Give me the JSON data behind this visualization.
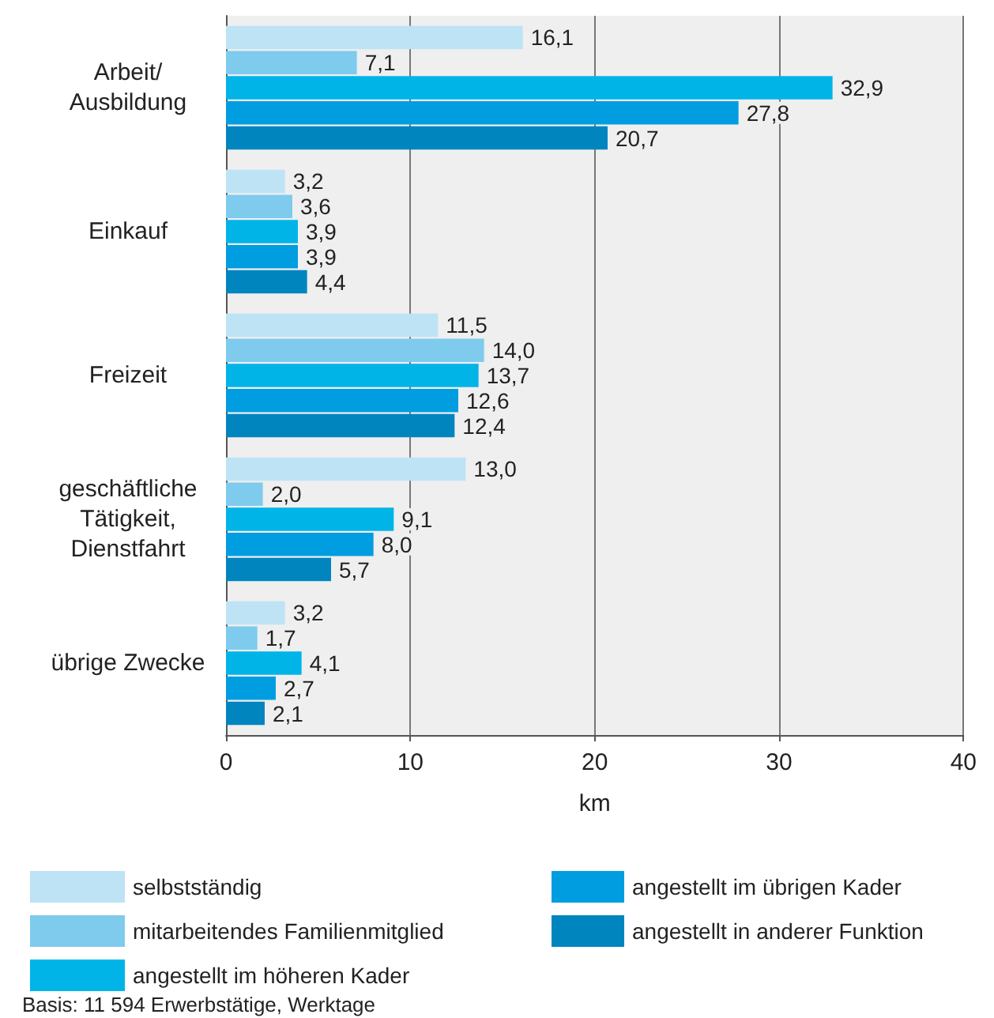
{
  "chart_data": {
    "type": "bar",
    "orientation": "horizontal",
    "xlabel": "km",
    "categories": [
      "Arbeit/\nAusbildung",
      "Einkauf",
      "Freizeit",
      "geschäftliche\nTätigkeit,\nDienstfahrt",
      "übrige Zwecke"
    ],
    "series": [
      {
        "name": "selbstständig",
        "color": "#bde3f5",
        "values": [
          16.1,
          3.2,
          11.5,
          13.0,
          3.2
        ],
        "value_labels": [
          "16,1",
          "3,2",
          "11,5",
          "13,0",
          "3,2"
        ]
      },
      {
        "name": "mitarbeitendes Familienmitglied",
        "color": "#7ecbee",
        "values": [
          7.1,
          3.6,
          14.0,
          2.0,
          1.7
        ],
        "value_labels": [
          "7,1",
          "3,6",
          "14,0",
          "2,0",
          "1,7"
        ]
      },
      {
        "name": "angestellt im höheren Kader",
        "color": "#00b4e8",
        "values": [
          32.9,
          3.9,
          13.7,
          9.1,
          4.1
        ],
        "value_labels": [
          "32,9",
          "3,9",
          "13,7",
          "9,1",
          "4,1"
        ]
      },
      {
        "name": "angestellt im übrigen Kader",
        "color": "#009de0",
        "values": [
          27.8,
          3.9,
          12.6,
          8.0,
          2.7
        ],
        "value_labels": [
          "27,8",
          "3,9",
          "12,6",
          "8,0",
          "2,7"
        ]
      },
      {
        "name": "angestellt in anderer Funktion",
        "color": "#0085bf",
        "values": [
          20.7,
          4.4,
          12.4,
          5.7,
          2.1
        ],
        "value_labels": [
          "20,7",
          "4,4",
          "12,4",
          "5,7",
          "2,1"
        ]
      }
    ],
    "xlim": [
      0,
      40
    ],
    "xticks": [
      0,
      10,
      20,
      30,
      40
    ],
    "grid": "x",
    "legend": "bottom",
    "annotations": [
      "Basis: 11 594 Erwerbstätige, Werktage"
    ]
  }
}
